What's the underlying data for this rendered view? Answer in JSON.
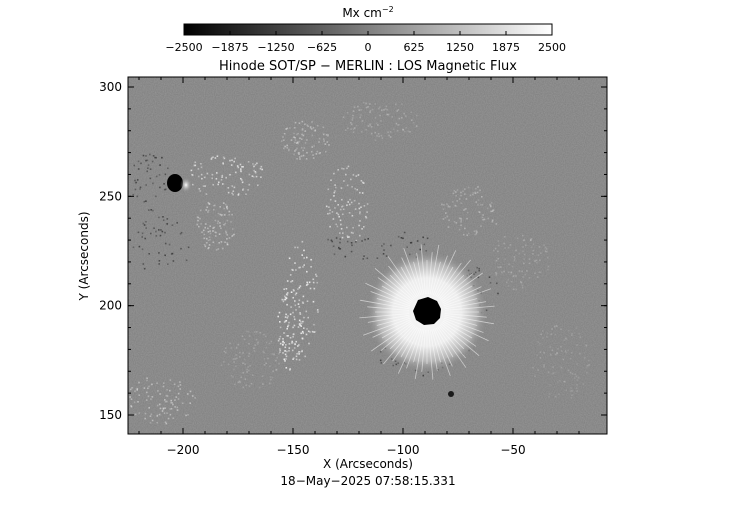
{
  "colorbar": {
    "unit_label": "Mx cm",
    "unit_exponent": "−2",
    "ticks": [
      "−2500",
      "−1875",
      "−1250",
      "−625",
      "0",
      "625",
      "1250",
      "1875",
      "2500"
    ]
  },
  "plot": {
    "title": "Hinode SOT/SP − MERLIN : LOS Magnetic Flux",
    "xlabel": "X (Arcseconds)",
    "ylabel": "Y (Arcseconds)",
    "xticks": [
      {
        "label": "−200",
        "value": -200
      },
      {
        "label": "−150",
        "value": -150
      },
      {
        "label": "−100",
        "value": -100
      },
      {
        "label": "−50",
        "value": -50
      }
    ],
    "yticks": [
      {
        "label": "300",
        "value": 300
      },
      {
        "label": "250",
        "value": 250
      },
      {
        "label": "200",
        "value": 200
      },
      {
        "label": "150",
        "value": 150
      }
    ],
    "timestamp": "18−May−2025 07:58:15.331"
  },
  "colors": {
    "background": "#ffffff",
    "field_gray": "#808080",
    "axis": "#000000"
  }
}
